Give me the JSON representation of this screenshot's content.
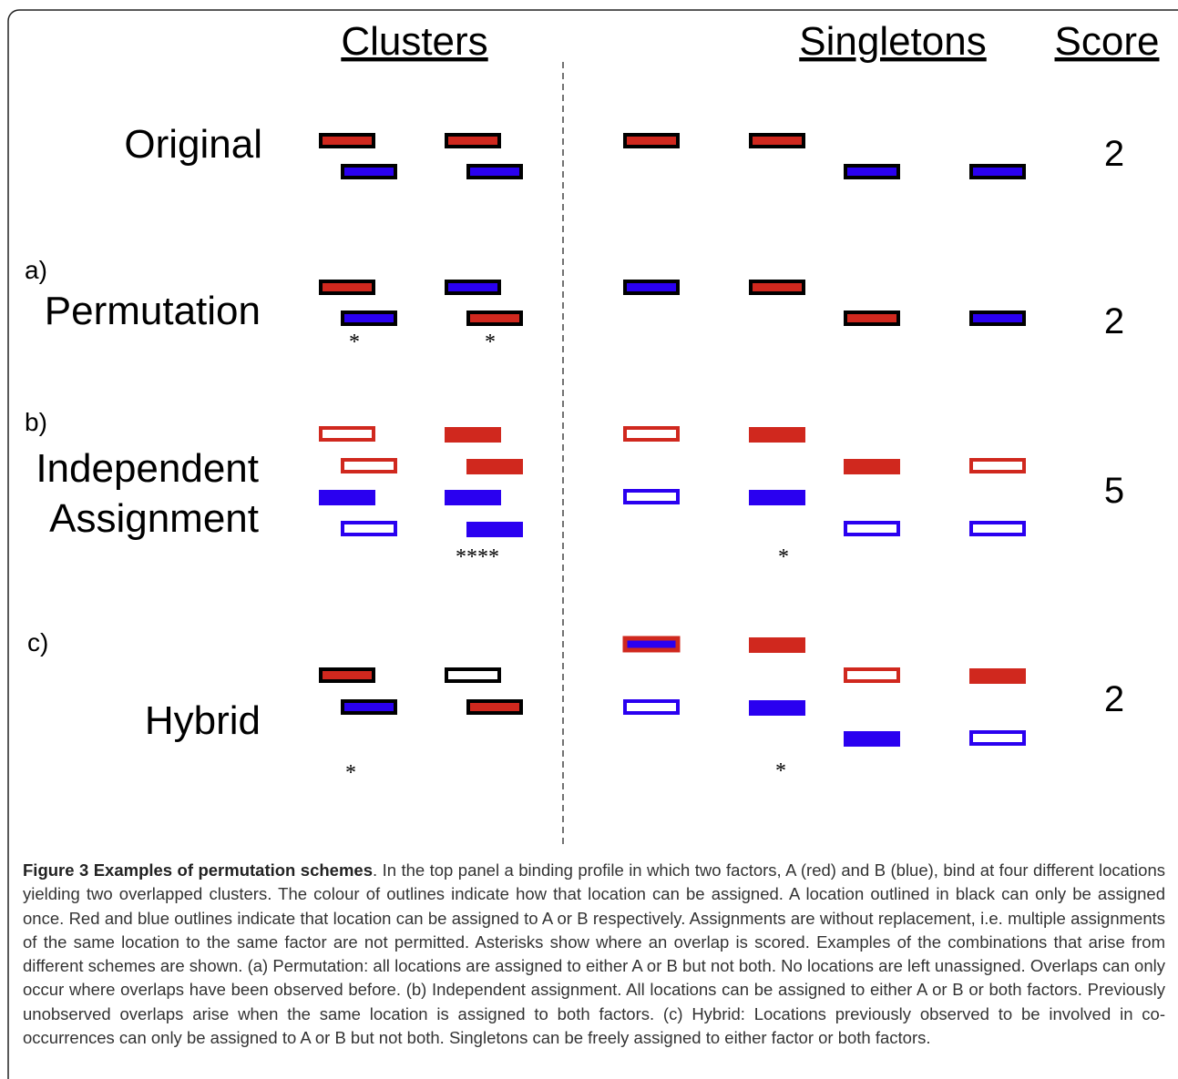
{
  "headers": {
    "clusters": "Clusters",
    "singletons": "Singletons",
    "score": "Score"
  },
  "rows": [
    {
      "label": [
        "Original"
      ],
      "score": 2,
      "asterisks": []
    },
    {
      "tag": "a)",
      "label": [
        "Permutation"
      ],
      "score": 2,
      "asterisks": [
        "*",
        "*"
      ]
    },
    {
      "tag": "b)",
      "label": [
        "Independent",
        "Assignment"
      ],
      "score": 5,
      "asterisks": [
        "****",
        "*"
      ]
    },
    {
      "tag": "c)",
      "label": [
        "Hybrid"
      ],
      "score": 2,
      "asterisks": [
        "*",
        "*"
      ]
    }
  ],
  "caption": {
    "title": "Figure 3 Examples of permutation schemes",
    "body": ". In the top panel a binding profile in which two factors, A (red) and B (blue), bind at four different locations yielding two overlapped clusters. The colour of outlines indicate how that location can be assigned. A location outlined in black can only be assigned once. Red and blue outlines indicate that location can be assigned to A or B respectively. Assignments are without replacement, i.e. multiple assignments of the same location to the same factor are not permitted. Asterisks show where an overlap is scored. Examples of the combinations that arise from different schemes are shown. (a) Permutation: all locations are assigned to either A or B but not both. No locations are left unassigned. Overlaps can only occur where overlaps have been observed before. (b) Independent assignment. All locations can be assigned to either A or B or both factors. Previously unobserved overlaps arise when the same location is assigned to both factors. (c) Hybrid: Locations previously observed to be involved in co-occurrences can only be assigned to A or B but not both. Singletons can be freely assigned to either factor or both factors."
  }
}
